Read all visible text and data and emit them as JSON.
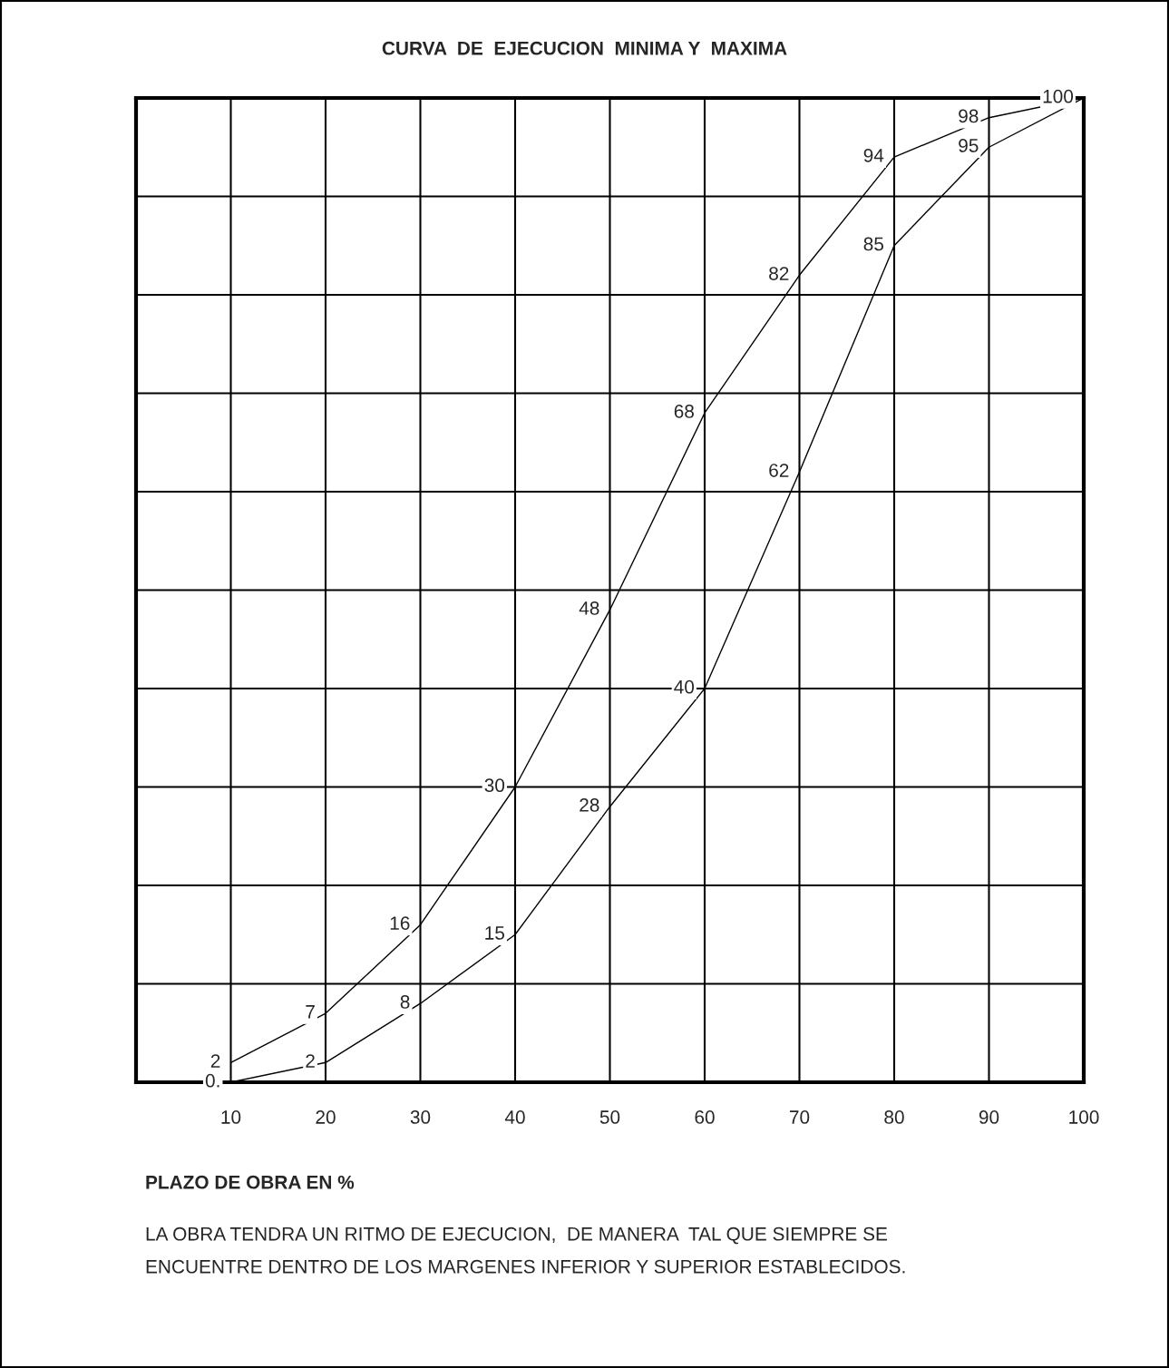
{
  "chart_data": {
    "type": "line",
    "title": "CURVA  DE  EJECUCION  MINIMA Y  MAXIMA",
    "xlabel": "PLAZO DE OBRA EN %",
    "annotations": [
      "LA OBRA TENDRA UN RITMO DE EJECUCION,  DE MANERA  TAL QUE SIEMPRE SE",
      "ENCUENTRE DENTRO DE LOS MARGENES INFERIOR Y SUPERIOR ESTABLECIDOS."
    ],
    "x": [
      10,
      20,
      30,
      40,
      50,
      60,
      70,
      80,
      90,
      100
    ],
    "series": [
      {
        "color": "#000000",
        "values": [
          2,
          7,
          16,
          30,
          48,
          68,
          82,
          94,
          98,
          100
        ],
        "value_labels": [
          "2",
          "7",
          "16",
          "30",
          "48",
          "68",
          "82",
          "94",
          "98",
          "100"
        ]
      },
      {
        "color": "#000000",
        "values": [
          0,
          2,
          8,
          15,
          28,
          40,
          62,
          85,
          95,
          100
        ],
        "value_labels": [
          "0.",
          "2",
          "8",
          "15",
          "28",
          "40",
          "62",
          "85",
          "95",
          null
        ]
      }
    ],
    "xlim": [
      0,
      100
    ],
    "ylim": [
      0,
      100
    ],
    "xticks": [
      10,
      20,
      30,
      40,
      50,
      60,
      70,
      80,
      90,
      100
    ],
    "yticks": [
      {
        "value": 0,
        "label": null
      },
      {
        "value": 10,
        "label": null
      },
      {
        "value": 20,
        "label": null
      },
      {
        "value": 30,
        "label": null
      },
      {
        "value": 40,
        "label": null
      },
      {
        "value": 50,
        "label": null
      },
      {
        "value": 60,
        "label": null
      },
      {
        "value": 70,
        "label": null
      },
      {
        "value": 80,
        "label": null
      },
      {
        "value": 90,
        "label": null
      },
      {
        "value": 100,
        "label": null
      }
    ],
    "tick_labels": "x",
    "grid": true,
    "legend": false,
    "marker": "none",
    "line_style": "solid"
  }
}
